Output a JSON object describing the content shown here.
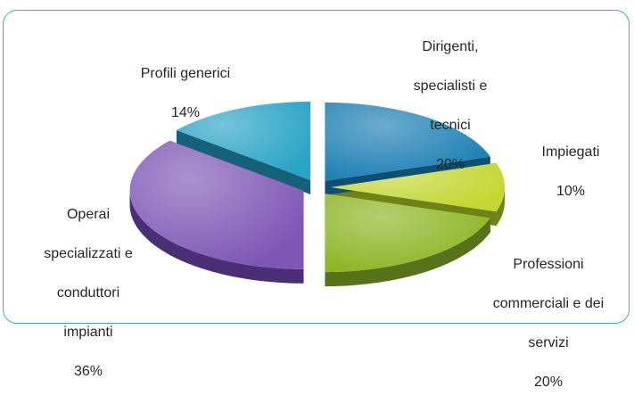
{
  "chart_data": {
    "type": "pie",
    "title": "",
    "style": "3d-exploded",
    "categories": [
      "Dirigenti, specialisti e tecnici",
      "Impiegati",
      "Professioni commerciali e dei servizi",
      "Operai specializzati e conduttori impianti",
      "Profili generici"
    ],
    "values": [
      20,
      10,
      20,
      36,
      14
    ],
    "display_labels": [
      {
        "lines": [
          "Dirigenti,",
          "specialisti e",
          "tecnici"
        ],
        "pct": "20%"
      },
      {
        "lines": [
          "Impiegati"
        ],
        "pct": "10%"
      },
      {
        "lines": [
          "Professioni",
          "commerciali e dei",
          "servizi"
        ],
        "pct": "20%"
      },
      {
        "lines": [
          "Operai",
          "specializzati e",
          "conduttori",
          "impianti"
        ],
        "pct": "36%"
      },
      {
        "lines": [
          "Profili generici"
        ],
        "pct": "14%"
      }
    ],
    "colors": [
      "#1c7fb4",
      "#c3d631",
      "#8cb523",
      "#7e57b5",
      "#2aa4c6"
    ],
    "side_colors": [
      "#0f4f73",
      "#6f8217",
      "#56721a",
      "#4a2f76",
      "#146178"
    ]
  }
}
